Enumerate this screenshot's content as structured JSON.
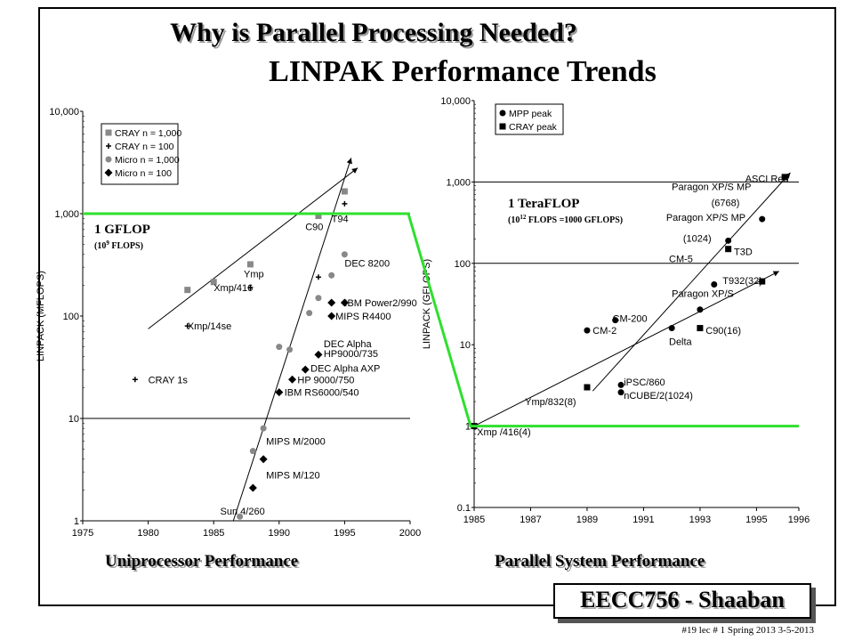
{
  "slide": {
    "title": "Why is Parallel Processing Needed?",
    "subtitle": "LINPAK Performance Trends",
    "brand": "EECC756 - Shaaban",
    "footer": "#19  lec # 1  Spring 2013  3-5-2013"
  },
  "chart_data": [
    {
      "type": "scatter",
      "caption": "Uniprocessor Performance",
      "xlabel": "",
      "ylabel": "LINPACK (MFLOPS)",
      "xlim": [
        1975,
        2000
      ],
      "ylim": [
        1,
        10000
      ],
      "yscale": "log",
      "grid": "horizontal at 10 and 1000",
      "legend_position": "top-left",
      "xticks": [
        "1975",
        "1980",
        "1985",
        "1990",
        "1995",
        "2000"
      ],
      "yticks": [
        "1",
        "10",
        "100",
        "1,000",
        "10,000"
      ],
      "series": [
        {
          "name": "CRAY n = 1,000",
          "marker": "square",
          "color": "#888888",
          "points": [
            {
              "x": 1983,
              "y": 180
            },
            {
              "x": 1985,
              "y": 215
            },
            {
              "x": 1987.8,
              "y": 320
            },
            {
              "x": 1993,
              "y": 950
            },
            {
              "x": 1995,
              "y": 1650
            }
          ]
        },
        {
          "name": "CRAY n = 100",
          "marker": "plus",
          "color": "#000000",
          "points": [
            {
              "x": 1979,
              "y": 24
            },
            {
              "x": 1983,
              "y": 80
            },
            {
              "x": 1987.8,
              "y": 190
            },
            {
              "x": 1993,
              "y": 240
            },
            {
              "x": 1995,
              "y": 1250
            }
          ]
        },
        {
          "name": "Micro n = 1,000",
          "marker": "circle",
          "color": "#888888",
          "points": [
            {
              "x": 1987,
              "y": 1.1
            },
            {
              "x": 1988,
              "y": 4.8
            },
            {
              "x": 1988.8,
              "y": 8
            },
            {
              "x": 1990,
              "y": 50
            },
            {
              "x": 1990.8,
              "y": 47
            },
            {
              "x": 1992.3,
              "y": 107
            },
            {
              "x": 1993,
              "y": 150
            },
            {
              "x": 1994,
              "y": 250
            },
            {
              "x": 1995,
              "y": 400
            }
          ]
        },
        {
          "name": "Micro n = 100",
          "marker": "diamond",
          "color": "#000000",
          "points": [
            {
              "x": 1988,
              "y": 2.1
            },
            {
              "x": 1988.8,
              "y": 4
            },
            {
              "x": 1990,
              "y": 18
            },
            {
              "x": 1991,
              "y": 24
            },
            {
              "x": 1992,
              "y": 30
            },
            {
              "x": 1993,
              "y": 42
            },
            {
              "x": 1994,
              "y": 100
            },
            {
              "x": 1994,
              "y": 135
            },
            {
              "x": 1995,
              "y": 135
            }
          ]
        }
      ],
      "trend_lines": [
        {
          "from": {
            "x": 1980,
            "y": 75
          },
          "to": {
            "x": 1996,
            "y": 2800
          }
        },
        {
          "from": {
            "x": 1986.5,
            "y": 1.0
          },
          "to": {
            "x": 1995.5,
            "y": 3500
          }
        }
      ],
      "annotations": [
        {
          "text": "CRAY 1s",
          "x": 1980,
          "y": 24
        },
        {
          "text": "Xmp/14se",
          "x": 1983,
          "y": 80
        },
        {
          "text": "Xmp/416",
          "x": 1985,
          "y": 190
        },
        {
          "text": "Ymp",
          "x": 1987.3,
          "y": 260
        },
        {
          "text": "C90",
          "x": 1992,
          "y": 750
        },
        {
          "text": "T94",
          "x": 1994,
          "y": 900
        },
        {
          "text": "DEC 8200",
          "x": 1995,
          "y": 330
        },
        {
          "text": "IBM Power2/990",
          "x": 1995,
          "y": 135
        },
        {
          "text": "MIPS R4400",
          "x": 1994.3,
          "y": 100
        },
        {
          "text": "DEC Alpha",
          "x": 1993.4,
          "y": 54
        },
        {
          "text": "HP9000/735",
          "x": 1993.4,
          "y": 43
        },
        {
          "text": "DEC Alpha AXP",
          "x": 1992.4,
          "y": 31
        },
        {
          "text": "HP 9000/750",
          "x": 1991.4,
          "y": 24
        },
        {
          "text": "IBM RS6000/540",
          "x": 1990.4,
          "y": 18
        },
        {
          "text": "MIPS M/2000",
          "x": 1989,
          "y": 6
        },
        {
          "text": "MIPS M/120",
          "x": 1989,
          "y": 2.8
        },
        {
          "text": "Sun 4/260",
          "x": 1985.5,
          "y": 1.25
        }
      ],
      "callout": {
        "label": "1 GFLOP",
        "detail_prefix": "(10",
        "detail_exp": "9",
        "detail_suffix": " FLOPS)",
        "y": 1000
      }
    },
    {
      "type": "scatter",
      "caption": "Parallel System Performance",
      "xlabel": "",
      "ylabel": "LINPACK (GFLOPS)",
      "xlim": [
        1985,
        1996.5
      ],
      "ylim": [
        0.1,
        10000
      ],
      "yscale": "log",
      "grid": "horizontal at 100 and 1000",
      "legend_position": "top-left",
      "xticks": [
        "1985",
        "1987",
        "1989",
        "1991",
        "1993",
        "1995",
        "1996"
      ],
      "yticks": [
        "0.1",
        "1",
        "10",
        "100",
        "1,000",
        "10,000"
      ],
      "series": [
        {
          "name": "MPP peak",
          "marker": "circle",
          "color": "#000000",
          "points": [
            {
              "x": 1990.2,
              "y": 3.2
            },
            {
              "x": 1990.2,
              "y": 2.6
            },
            {
              "x": 1989,
              "y": 15
            },
            {
              "x": 1990,
              "y": 20
            },
            {
              "x": 1992,
              "y": 16
            },
            {
              "x": 1993,
              "y": 27
            },
            {
              "x": 1993.5,
              "y": 55
            },
            {
              "x": 1994,
              "y": 190
            },
            {
              "x": 1995.2,
              "y": 350
            }
          ]
        },
        {
          "name": "CRAY peak",
          "marker": "square",
          "color": "#000000",
          "points": [
            {
              "x": 1985,
              "y": 1
            },
            {
              "x": 1989,
              "y": 3
            },
            {
              "x": 1993,
              "y": 16
            },
            {
              "x": 1994,
              "y": 150
            },
            {
              "x": 1995.2,
              "y": 60
            },
            {
              "x": 1996,
              "y": 1150
            }
          ]
        }
      ],
      "trend_lines": [
        {
          "from": {
            "x": 1985,
            "y": 1
          },
          "to": {
            "x": 1995.8,
            "y": 80
          }
        },
        {
          "from": {
            "x": 1989.2,
            "y": 2.7
          },
          "to": {
            "x": 1996.2,
            "y": 1300
          }
        }
      ],
      "annotations": [
        {
          "text": "Xmp /416(4)",
          "x": 1985.1,
          "y": 0.85
        },
        {
          "text": "Ymp/832(8)",
          "x": 1986.8,
          "y": 2.0
        },
        {
          "text": "nCUBE/2(1024)",
          "x": 1990.3,
          "y": 2.4
        },
        {
          "text": "iPSC/860",
          "x": 1990.3,
          "y": 3.5
        },
        {
          "text": "CM-2",
          "x": 1989.2,
          "y": 15
        },
        {
          "text": "CM-200",
          "x": 1989.9,
          "y": 21
        },
        {
          "text": "Delta",
          "x": 1991.9,
          "y": 11
        },
        {
          "text": "C90(16)",
          "x": 1993.2,
          "y": 15
        },
        {
          "text": "Paragon XP/S",
          "x": 1992,
          "y": 43
        },
        {
          "text": "T932(32)",
          "x": 1993.8,
          "y": 62
        },
        {
          "text": "CM-5",
          "x": 1991.9,
          "y": 115
        },
        {
          "text": "T3D",
          "x": 1994.2,
          "y": 140
        },
        {
          "text": "Paragon XP/S MP",
          "x": 1991.8,
          "y": 370
        },
        {
          "text": "(1024)",
          "x": 1992.4,
          "y": 205
        },
        {
          "text": "Paragon XP/S MP",
          "x": 1992,
          "y": 880
        },
        {
          "text": "(6768)",
          "x": 1993.4,
          "y": 560
        },
        {
          "text": "ASCI Red",
          "x": 1994.6,
          "y": 1100
        }
      ],
      "callout": {
        "label": "1 TeraFLOP",
        "detail_prefix": "(10",
        "detail_exp": "12",
        "detail_suffix": " FLOPS =1000 GFLOPS)",
        "y": 1000
      }
    }
  ],
  "green_connector": "#2ee02e"
}
